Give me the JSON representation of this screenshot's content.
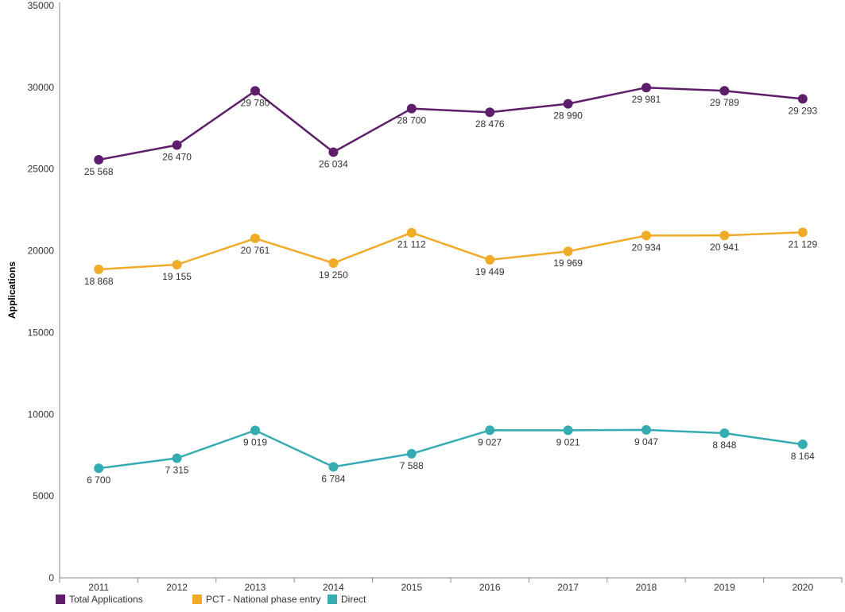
{
  "chart_data": {
    "type": "line",
    "ylabel": "Applications",
    "xlabel": "",
    "ylim": [
      0,
      35000
    ],
    "yticks": [
      0,
      5000,
      10000,
      15000,
      20000,
      25000,
      30000,
      35000
    ],
    "x": [
      "2011",
      "2012",
      "2013",
      "2014",
      "2015",
      "2016",
      "2017",
      "2018",
      "2019",
      "2020"
    ],
    "grid": false,
    "legend_position": "bottom-left",
    "series": [
      {
        "name": "Total Applications",
        "color": "#5e1e6b",
        "values": [
          25568,
          26470,
          29780,
          26034,
          28700,
          28476,
          28990,
          29981,
          29789,
          29293
        ],
        "labels": [
          "25 568",
          "26 470",
          "29 780",
          "26 034",
          "28 700",
          "28 476",
          "28 990",
          "29 981",
          "29 789",
          "29 293"
        ]
      },
      {
        "name": "PCT - National phase entry",
        "color": "#f0ab28",
        "values": [
          18868,
          19155,
          20761,
          19250,
          21112,
          19449,
          19969,
          20934,
          20941,
          21129
        ],
        "labels": [
          "18 868",
          "19 155",
          "20 761",
          "19 250",
          "21 112",
          "19 449",
          "19 969",
          "20 934",
          "20 941",
          "21 129"
        ]
      },
      {
        "name": "Direct",
        "color": "#35acb1",
        "values": [
          6700,
          7315,
          9019,
          6784,
          7588,
          9027,
          9021,
          9047,
          8848,
          8164
        ],
        "labels": [
          "6 700",
          "7 315",
          "9 019",
          "6 784",
          "7 588",
          "9 027",
          "9 021",
          "9 047",
          "8 848",
          "8 164"
        ]
      }
    ]
  }
}
